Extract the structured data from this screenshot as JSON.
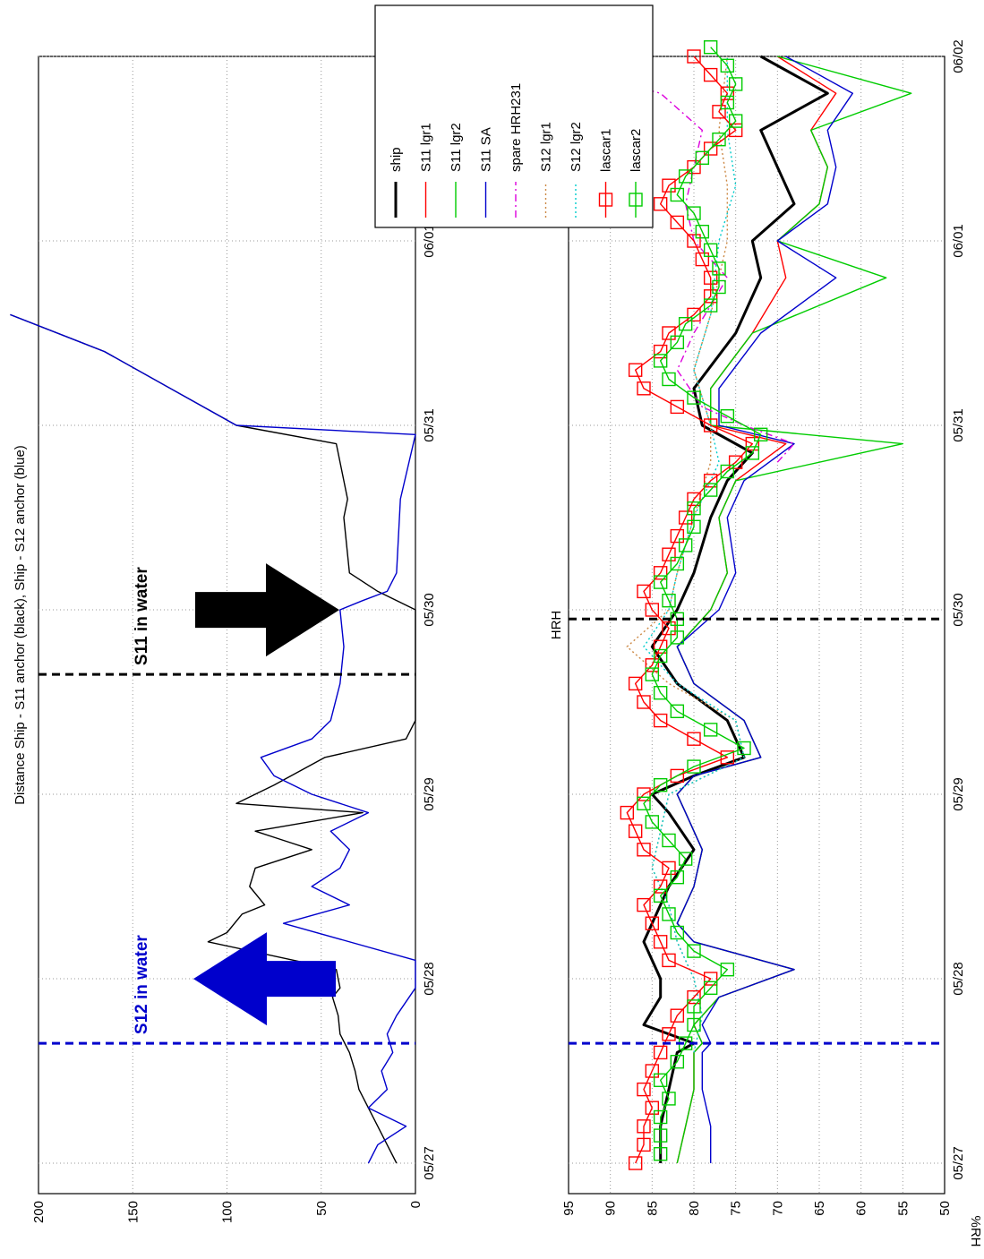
{
  "chart_data": [
    {
      "type": "line",
      "title": "Distance Ship - S11 anchor (black), Ship - S12 anchor (blue)",
      "ylim": [
        0,
        200
      ],
      "yticks": [
        "200",
        "150",
        "100",
        "50",
        "0"
      ],
      "yticks_values": [
        200,
        150,
        100,
        50,
        0
      ],
      "xlim": [
        0,
        6.2
      ],
      "xticks": [
        "05/27",
        "05/28",
        "05/29",
        "05/30",
        "05/31",
        "06/01",
        "06/02"
      ],
      "xticks_values": [
        0,
        1,
        2,
        3,
        4,
        5,
        6
      ],
      "grid": true,
      "series": [
        {
          "color": "#000000",
          "x": [
            0.0,
            0.1,
            0.2,
            0.3,
            0.4,
            0.5,
            0.6,
            0.7,
            0.8,
            0.9,
            0.95,
            1.05,
            1.2,
            1.25,
            1.35,
            1.4,
            1.5,
            1.6,
            1.7,
            1.75,
            1.8,
            1.9,
            1.95,
            2.05,
            2.2,
            2.3,
            2.4,
            2.5,
            2.6,
            2.7,
            2.75,
            3.0,
            3.1,
            3.2,
            3.5,
            3.6,
            3.9,
            4.0,
            4.2,
            4.4,
            4.6
          ],
          "y": [
            10,
            15,
            20,
            25,
            30,
            32,
            35,
            40,
            41,
            44,
            40,
            42,
            110,
            100,
            92,
            80,
            88,
            85,
            55,
            70,
            85,
            28,
            95,
            75,
            48,
            5,
            0,
            0,
            0,
            0,
            0,
            0,
            20,
            35,
            38,
            36,
            42,
            95,
            130,
            165,
            215
          ]
        },
        {
          "color": "#0000cc",
          "x": [
            0.0,
            0.1,
            0.2,
            0.3,
            0.4,
            0.5,
            0.6,
            0.7,
            0.8,
            0.95,
            1.0,
            1.1,
            1.3,
            1.4,
            1.5,
            1.6,
            1.7,
            1.8,
            1.9,
            2.0,
            2.1,
            2.2,
            2.3,
            2.4,
            2.6,
            2.8,
            3.0,
            3.05,
            3.1,
            3.2,
            3.6,
            3.95,
            4.0,
            4.2,
            4.4,
            4.6
          ],
          "y": [
            25,
            20,
            5,
            25,
            15,
            18,
            12,
            15,
            10,
            0,
            0,
            0,
            70,
            35,
            55,
            40,
            35,
            45,
            25,
            55,
            75,
            82,
            55,
            45,
            40,
            38,
            40,
            28,
            15,
            10,
            8,
            0,
            95,
            130,
            165,
            215
          ]
        }
      ],
      "annotations": [
        {
          "text": "S12 in water",
          "color": "#0000cc",
          "x": 0.65
        },
        {
          "text": "S11 in water",
          "color": "#000000",
          "x": 2.65
        }
      ]
    },
    {
      "type": "line",
      "title": "HRH",
      "ylabel": "%RH",
      "ylim": [
        50,
        95
      ],
      "yticks": [
        "95",
        "90",
        "85",
        "80",
        "75",
        "70",
        "65",
        "60",
        "55",
        "50"
      ],
      "yticks_values": [
        95,
        90,
        85,
        80,
        75,
        70,
        65,
        60,
        55,
        50
      ],
      "xlim": [
        0,
        6.2
      ],
      "xticks": [
        "05/27",
        "05/28",
        "05/29",
        "05/30",
        "05/31",
        "06/01",
        "06/02"
      ],
      "xticks_values": [
        0,
        1,
        2,
        3,
        4,
        5,
        6
      ],
      "grid": true,
      "legend_position": "top-right",
      "vlines": [
        {
          "x": 0.65,
          "color": "#0000cc"
        },
        {
          "x": 2.95,
          "color": "#000000"
        }
      ],
      "series": [
        {
          "name": "ship",
          "color": "#000000",
          "style": "thick",
          "x": [
            0.0,
            0.2,
            0.4,
            0.6,
            0.65,
            0.75,
            0.9,
            1.0,
            1.2,
            1.3,
            1.5,
            1.7,
            1.9,
            2.0,
            2.1,
            2.2,
            2.4,
            2.6,
            2.8,
            3.0,
            3.2,
            3.5,
            3.7,
            3.85,
            4.0,
            4.2,
            4.5,
            4.8,
            5.0,
            5.2,
            5.4,
            5.6,
            5.8,
            6.0
          ],
          "y": [
            84,
            84,
            83,
            82,
            80,
            86,
            84,
            84,
            86,
            85,
            83,
            80,
            83,
            85,
            80,
            74,
            76,
            82,
            85,
            82,
            80,
            78,
            76,
            73,
            79,
            80,
            75,
            72,
            73,
            68,
            70,
            72,
            64,
            72
          ]
        },
        {
          "name": "S11 lgr1",
          "color": "#ff0000",
          "x": [
            0.0,
            0.2,
            0.4,
            0.6,
            0.65,
            0.75,
            0.9,
            1.05,
            1.2,
            1.3,
            1.5,
            1.7,
            1.9,
            2.0,
            2.1,
            2.2,
            2.4,
            2.6,
            2.8,
            3.0,
            3.2,
            3.5,
            3.7,
            3.9,
            4.0,
            4.2,
            4.5,
            4.8,
            5.0,
            5.2,
            5.4,
            5.6,
            5.8,
            6.0
          ],
          "y": [
            82,
            81,
            80,
            80,
            79,
            80,
            77,
            68,
            80,
            82,
            80,
            79,
            81,
            82,
            80,
            72,
            74,
            80,
            82,
            78,
            76,
            77,
            75,
            69,
            78,
            78,
            73,
            69,
            70,
            65,
            64,
            66,
            63,
            70
          ]
        },
        {
          "name": "S11 lgr2",
          "color": "#00cc00",
          "x": [
            0.0,
            0.2,
            0.4,
            0.6,
            0.65,
            0.75,
            0.9,
            1.05,
            1.2,
            1.3,
            1.5,
            1.7,
            1.9,
            2.0,
            2.1,
            2.2,
            2.4,
            2.6,
            2.8,
            3.0,
            3.2,
            3.5,
            3.7,
            3.9,
            4.0,
            4.2,
            4.5,
            4.8,
            5.0,
            5.2,
            5.4,
            5.6,
            5.8,
            6.0
          ],
          "y": [
            82,
            81,
            80,
            80,
            79,
            80,
            77,
            68,
            80,
            82,
            80,
            79,
            81,
            82,
            80,
            72,
            74,
            80,
            82,
            78,
            76,
            77,
            75,
            55,
            78,
            78,
            73,
            57,
            70,
            65,
            64,
            66,
            54,
            70
          ]
        },
        {
          "name": "S11 SA",
          "color": "#0000cc",
          "x": [
            0.0,
            0.2,
            0.4,
            0.6,
            0.65,
            0.75,
            0.9,
            1.05,
            1.2,
            1.3,
            1.5,
            1.7,
            1.9,
            2.0,
            2.1,
            2.2,
            2.4,
            2.6,
            2.8,
            3.0,
            3.2,
            3.5,
            3.7,
            3.9,
            4.0,
            4.2,
            4.5,
            4.8,
            5.0,
            5.2,
            5.4,
            5.6,
            5.8,
            6.0
          ],
          "y": [
            78,
            78,
            79,
            79,
            78,
            79,
            77,
            68,
            80,
            82,
            80,
            79,
            81,
            82,
            80,
            72,
            74,
            80,
            82,
            77,
            75,
            76,
            74,
            68,
            77,
            77,
            72,
            63,
            70,
            64,
            63,
            64,
            61,
            69
          ]
        },
        {
          "name": "spare HRH231",
          "color": "#dd00dd",
          "style": "dashdot",
          "x": [
            3.8,
            3.9,
            4.0,
            4.1,
            4.3,
            4.5,
            4.8,
            5.0,
            5.2,
            5.4,
            5.6,
            5.8,
            5.9
          ],
          "y": [
            70,
            68,
            74,
            79,
            82,
            80,
            76,
            80,
            81,
            80,
            79,
            84,
            92
          ]
        },
        {
          "name": "S12 lgr1",
          "color": "#cc8844",
          "style": "dotted",
          "x": [
            0.6,
            0.8,
            1.0,
            1.2,
            1.4,
            1.6,
            1.8,
            2.0,
            2.2,
            2.4,
            2.6,
            2.8,
            3.0,
            3.2,
            3.5,
            3.8,
            4.0,
            4.3,
            4.6,
            5.0,
            5.3,
            5.6,
            6.0
          ],
          "y": [
            80,
            79,
            80,
            82,
            83,
            85,
            84,
            83,
            74,
            75,
            83,
            88,
            83,
            82,
            80,
            78,
            78,
            80,
            78,
            76,
            76,
            77,
            76
          ]
        },
        {
          "name": "S12 lgr2",
          "color": "#00cccc",
          "style": "dotted",
          "x": [
            0.6,
            0.8,
            1.0,
            1.2,
            1.4,
            1.6,
            1.8,
            2.0,
            2.2,
            2.4,
            2.6,
            2.8,
            3.0,
            3.2,
            3.5,
            3.8,
            4.0,
            4.3,
            4.6,
            5.0,
            5.3,
            5.6,
            6.0
          ],
          "y": [
            80,
            79,
            80,
            82,
            83,
            85,
            84,
            83,
            74,
            75,
            82,
            86,
            83,
            82,
            80,
            77,
            78,
            80,
            78,
            77,
            75,
            76,
            76
          ]
        },
        {
          "name": "lascar1",
          "color": "#ff0000",
          "marker": "square",
          "x": [
            0.0,
            0.1,
            0.2,
            0.3,
            0.4,
            0.5,
            0.6,
            0.7,
            0.8,
            0.9,
            1.0,
            1.1,
            1.2,
            1.3,
            1.4,
            1.5,
            1.6,
            1.7,
            1.8,
            1.9,
            2.0,
            2.1,
            2.2,
            2.3,
            2.4,
            2.5,
            2.6,
            2.7,
            2.8,
            2.9,
            3.0,
            3.1,
            3.2,
            3.3,
            3.4,
            3.5,
            3.6,
            3.7,
            3.8,
            3.9,
            4.0,
            4.1,
            4.2,
            4.3,
            4.4,
            4.5,
            4.6,
            4.7,
            4.8,
            4.9,
            5.0,
            5.1,
            5.2,
            5.3,
            5.4,
            5.5,
            5.6,
            5.7,
            5.8,
            5.9,
            6.0
          ],
          "y": [
            87,
            86,
            86,
            85,
            86,
            85,
            84,
            83,
            82,
            80,
            78,
            83,
            84,
            85,
            86,
            84,
            83,
            86,
            87,
            88,
            86,
            82,
            76,
            80,
            84,
            86,
            87,
            85,
            84,
            83,
            85,
            86,
            84,
            83,
            82,
            81,
            80,
            78,
            75,
            73,
            78,
            82,
            86,
            87,
            84,
            83,
            80,
            78,
            78,
            79,
            80,
            82,
            84,
            83,
            80,
            78,
            75,
            77,
            76,
            78,
            80
          ]
        },
        {
          "name": "lascar2",
          "color": "#00cc00",
          "marker": "square",
          "x": [
            0.05,
            0.15,
            0.25,
            0.35,
            0.45,
            0.55,
            0.65,
            0.75,
            0.85,
            0.95,
            1.05,
            1.15,
            1.25,
            1.35,
            1.45,
            1.55,
            1.65,
            1.75,
            1.85,
            1.95,
            2.05,
            2.15,
            2.25,
            2.35,
            2.45,
            2.55,
            2.65,
            2.75,
            2.85,
            2.95,
            3.05,
            3.15,
            3.25,
            3.35,
            3.45,
            3.55,
            3.65,
            3.75,
            3.85,
            3.95,
            4.05,
            4.15,
            4.25,
            4.35,
            4.45,
            4.55,
            4.65,
            4.75,
            4.85,
            4.95,
            5.05,
            5.15,
            5.25,
            5.35,
            5.45,
            5.55,
            5.65,
            5.75,
            5.85,
            5.95,
            6.05
          ],
          "y": [
            84,
            84,
            84,
            83,
            84,
            82,
            81,
            80,
            80,
            78,
            76,
            80,
            82,
            83,
            84,
            82,
            81,
            83,
            85,
            86,
            84,
            80,
            74,
            78,
            82,
            84,
            85,
            84,
            82,
            82,
            83,
            84,
            82,
            81,
            80,
            80,
            78,
            76,
            73,
            72,
            76,
            80,
            83,
            84,
            82,
            81,
            78,
            77,
            77,
            78,
            79,
            80,
            82,
            81,
            79,
            77,
            75,
            76,
            75,
            76,
            78
          ]
        }
      ]
    }
  ]
}
